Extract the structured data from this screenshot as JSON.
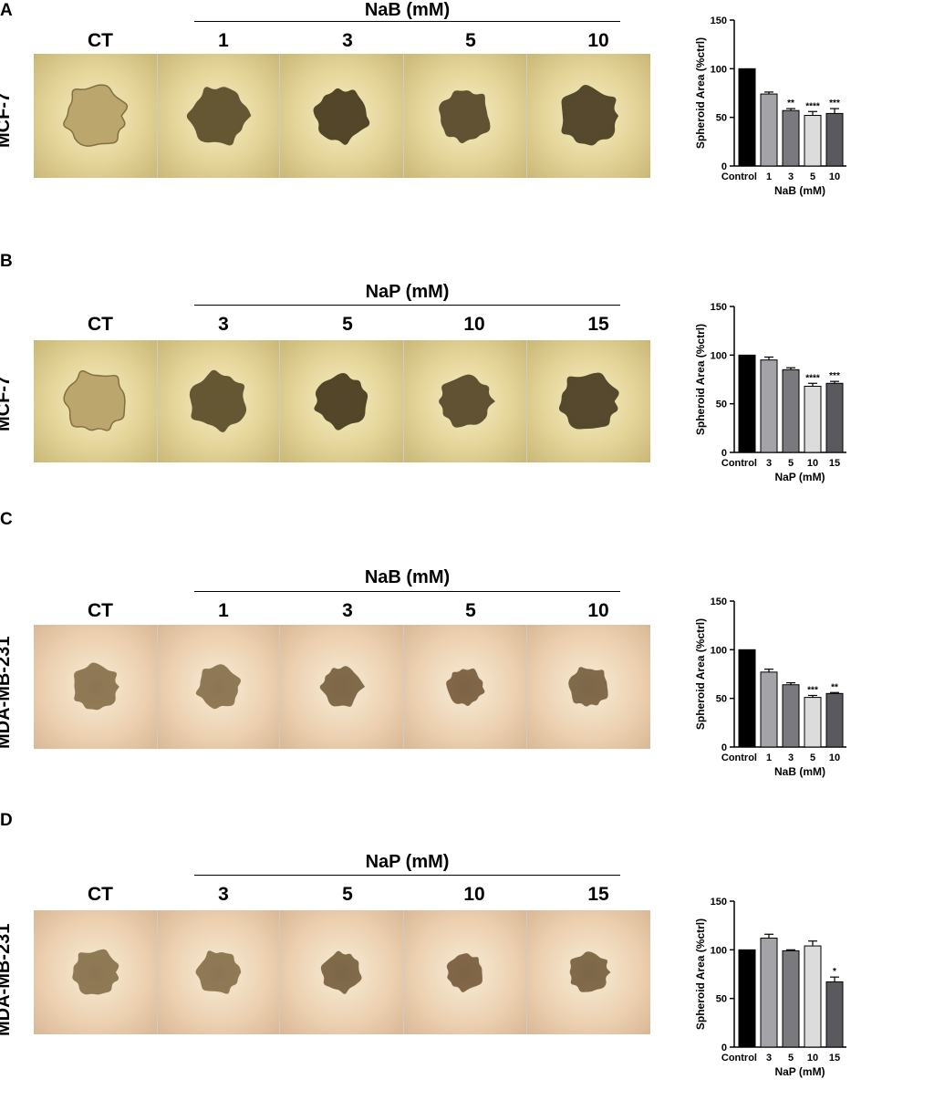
{
  "panels": [
    {
      "letter": "A",
      "cell_line": "MCF-7",
      "treatment": "NaB (mM)",
      "columns": [
        "CT",
        "1",
        "3",
        "5",
        "10"
      ],
      "style": "mcf"
    },
    {
      "letter": "B",
      "cell_line": "MCF-7",
      "treatment": "NaP (mM)",
      "columns": [
        "CT",
        "3",
        "5",
        "10",
        "15"
      ],
      "style": "mcf"
    },
    {
      "letter": "C",
      "cell_line": "MDA-MB-231",
      "treatment": "NaB (mM)",
      "columns": [
        "CT",
        "1",
        "3",
        "5",
        "10"
      ],
      "style": "mda"
    },
    {
      "letter": "D",
      "cell_line": "MDA-MB-231",
      "treatment": "NaP (mM)",
      "columns": [
        "CT",
        "3",
        "5",
        "10",
        "15"
      ],
      "style": "mda"
    }
  ],
  "chart_data": [
    {
      "type": "bar",
      "categories": [
        "Control",
        "1",
        "3",
        "5",
        "10"
      ],
      "values": [
        100,
        74,
        57,
        52,
        54
      ],
      "errors": [
        0,
        2,
        2,
        4,
        5
      ],
      "significance": [
        "",
        "",
        "**",
        "****",
        "***"
      ],
      "colors": [
        "#000000",
        "#a4a4a8",
        "#7a7a7e",
        "#dcdcdc",
        "#5a5a5e"
      ],
      "xlabel": "NaB (mM)",
      "ylabel": "Spheroid Area (%ctrl)",
      "ylim": [
        0,
        150
      ],
      "yticks": [
        0,
        50,
        100,
        150
      ]
    },
    {
      "type": "bar",
      "categories": [
        "Control",
        "3",
        "5",
        "10",
        "15"
      ],
      "values": [
        100,
        95,
        85,
        68,
        71
      ],
      "errors": [
        0,
        3,
        2,
        3,
        2
      ],
      "significance": [
        "",
        "",
        "",
        "****",
        "***"
      ],
      "colors": [
        "#000000",
        "#a4a4a8",
        "#7a7a7e",
        "#dcdcdc",
        "#5a5a5e"
      ],
      "xlabel": "NaP (mM)",
      "ylabel": "Spheroid Area (%ctrl)",
      "ylim": [
        0,
        150
      ],
      "yticks": [
        0,
        50,
        100,
        150
      ]
    },
    {
      "type": "bar",
      "categories": [
        "Control",
        "1",
        "3",
        "5",
        "10"
      ],
      "values": [
        100,
        77,
        64,
        51,
        55
      ],
      "errors": [
        0,
        3,
        2,
        2,
        1
      ],
      "significance": [
        "",
        "",
        "",
        "***",
        "**"
      ],
      "colors": [
        "#000000",
        "#a4a4a8",
        "#7a7a7e",
        "#dcdcdc",
        "#5a5a5e"
      ],
      "xlabel": "NaB (mM)",
      "ylabel": "Spheroid Area (%ctrl)",
      "ylim": [
        0,
        150
      ],
      "yticks": [
        0,
        50,
        100,
        150
      ]
    },
    {
      "type": "bar",
      "categories": [
        "Control",
        "3",
        "5",
        "10",
        "15"
      ],
      "values": [
        100,
        112,
        99,
        104,
        67
      ],
      "errors": [
        0,
        4,
        1,
        5,
        5
      ],
      "significance": [
        "",
        "",
        "",
        "",
        "*"
      ],
      "colors": [
        "#000000",
        "#a4a4a8",
        "#7a7a7e",
        "#dcdcdc",
        "#5a5a5e"
      ],
      "xlabel": "NaP (mM)",
      "ylabel": "Spheroid Area (%ctrl)",
      "ylim": [
        0,
        150
      ],
      "yticks": [
        0,
        50,
        100,
        150
      ]
    }
  ]
}
